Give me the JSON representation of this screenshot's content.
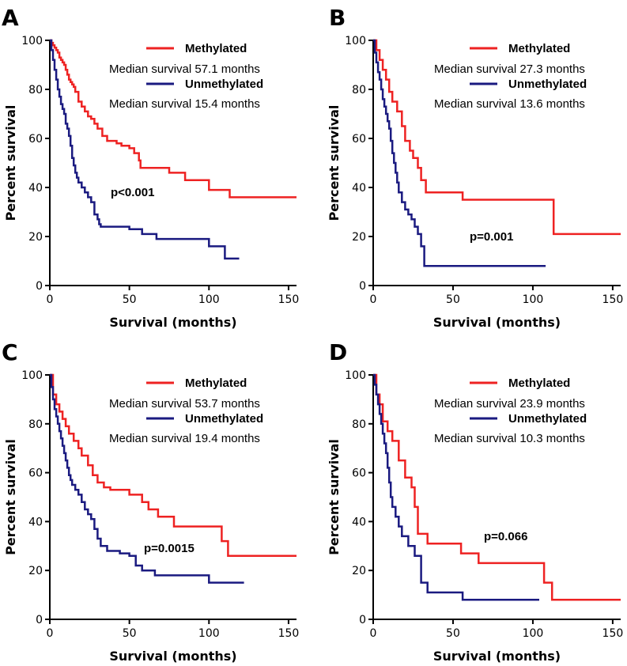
{
  "chart_data": [
    {
      "panel": "A",
      "type": "line",
      "xlabel": "Survival (months)",
      "ylabel": "Percent survival",
      "xlim": [
        0,
        155
      ],
      "ylim": [
        0,
        100
      ],
      "xticks": [
        0,
        50,
        100,
        150
      ],
      "yticks": [
        0,
        20,
        40,
        60,
        80,
        100
      ],
      "pvalue": "p<0.001",
      "series": [
        {
          "name": "Methylated",
          "color": "#ee2222",
          "median_text": "Median survival 57.1 months",
          "x": [
            0,
            1,
            2,
            3,
            4,
            5,
            6,
            7,
            8,
            9,
            10,
            11,
            12,
            13,
            14,
            15,
            16,
            18,
            20,
            22,
            24,
            26,
            28,
            30,
            33,
            36,
            42,
            45,
            50,
            53,
            56,
            57,
            68,
            75,
            85,
            100,
            113,
            155
          ],
          "y": [
            100,
            99,
            98,
            97,
            96,
            95,
            93,
            92,
            91,
            90,
            88,
            86,
            84,
            83,
            82,
            81,
            79,
            75,
            73,
            71,
            69,
            68,
            66,
            64,
            61,
            59,
            58,
            57,
            56,
            54,
            51,
            48,
            48,
            46,
            43,
            39,
            36,
            36
          ]
        },
        {
          "name": "Unmethylated",
          "color": "#1a1a80",
          "median_text": "Median survival 15.4 months",
          "x": [
            0,
            1,
            2,
            3,
            4,
            5,
            6,
            7,
            8,
            9,
            10,
            11,
            12,
            13,
            14,
            15,
            16,
            17,
            18,
            20,
            22,
            24,
            26,
            28,
            30,
            31,
            32,
            42,
            50,
            58,
            67,
            100,
            110,
            119
          ],
          "y": [
            100,
            96,
            92,
            88,
            84,
            80,
            77,
            74,
            72,
            70,
            66,
            64,
            61,
            57,
            52,
            49,
            46,
            44,
            42,
            40,
            38,
            36,
            34,
            29,
            27,
            25,
            24,
            24,
            23,
            21,
            19,
            16,
            11,
            11
          ]
        }
      ]
    },
    {
      "panel": "B",
      "type": "line",
      "xlabel": "Survival (months)",
      "ylabel": "Percent survival",
      "xlim": [
        0,
        155
      ],
      "ylim": [
        0,
        100
      ],
      "xticks": [
        0,
        50,
        100,
        150
      ],
      "yticks": [
        0,
        20,
        40,
        60,
        80,
        100
      ],
      "pvalue": "p=0.001",
      "series": [
        {
          "name": "Methylated",
          "color": "#ee2222",
          "median_text": "Median survival 27.3 months",
          "x": [
            0,
            2,
            4,
            6,
            8,
            10,
            12,
            15,
            18,
            20,
            23,
            25,
            28,
            30,
            33,
            56,
            113,
            155
          ],
          "y": [
            100,
            96,
            92,
            88,
            84,
            79,
            75,
            71,
            65,
            59,
            55,
            52,
            48,
            43,
            38,
            35,
            21,
            21
          ]
        },
        {
          "name": "Unmethylated",
          "color": "#1a1a80",
          "median_text": "Median survival 13.6 months",
          "x": [
            0,
            1,
            2,
            3,
            4,
            5,
            6,
            7,
            8,
            9,
            10,
            11,
            12,
            13,
            14,
            15,
            16,
            18,
            20,
            22,
            24,
            26,
            28,
            30,
            32,
            108
          ],
          "y": [
            100,
            95,
            91,
            87,
            84,
            80,
            76,
            73,
            70,
            67,
            64,
            59,
            54,
            50,
            46,
            42,
            38,
            34,
            31,
            29,
            27,
            24,
            21,
            16,
            8,
            8
          ]
        }
      ]
    },
    {
      "panel": "C",
      "type": "line",
      "xlabel": "Survival (months)",
      "ylabel": "Percent survival",
      "xlim": [
        0,
        155
      ],
      "ylim": [
        0,
        100
      ],
      "xticks": [
        0,
        50,
        100,
        150
      ],
      "yticks": [
        0,
        20,
        40,
        60,
        80,
        100
      ],
      "pvalue": "p=0.0015",
      "series": [
        {
          "name": "Methylated",
          "color": "#ee2222",
          "median_text": "Median survival 53.7 months",
          "x": [
            0,
            2,
            4,
            6,
            8,
            10,
            12,
            15,
            18,
            20,
            24,
            27,
            30,
            34,
            38,
            50,
            58,
            62,
            68,
            78,
            108,
            112,
            155
          ],
          "y": [
            100,
            92,
            88,
            85,
            82,
            79,
            76,
            73,
            70,
            67,
            63,
            59,
            56,
            54,
            53,
            51,
            48,
            45,
            42,
            38,
            32,
            26,
            26
          ]
        },
        {
          "name": "Unmethylated",
          "color": "#1a1a80",
          "median_text": "Median survival 19.4 months",
          "x": [
            0,
            1,
            2,
            3,
            4,
            5,
            6,
            7,
            8,
            9,
            10,
            11,
            12,
            13,
            14,
            16,
            18,
            20,
            22,
            24,
            26,
            28,
            30,
            32,
            36,
            44,
            50,
            54,
            58,
            66,
            100,
            122
          ],
          "y": [
            100,
            95,
            90,
            86,
            83,
            80,
            77,
            74,
            71,
            68,
            65,
            62,
            59,
            57,
            55,
            53,
            51,
            48,
            45,
            43,
            41,
            37,
            33,
            30,
            28,
            27,
            26,
            22,
            20,
            18,
            15,
            15
          ]
        }
      ]
    },
    {
      "panel": "D",
      "type": "line",
      "xlabel": "Survival (months)",
      "ylabel": "Percent survival",
      "xlim": [
        0,
        155
      ],
      "ylim": [
        0,
        100
      ],
      "xticks": [
        0,
        50,
        100,
        150
      ],
      "yticks": [
        0,
        20,
        40,
        60,
        80,
        100
      ],
      "pvalue": "p=0.066",
      "series": [
        {
          "name": "Methylated",
          "color": "#ee2222",
          "median_text": "Median survival 23.9 months",
          "x": [
            0,
            2,
            4,
            6,
            9,
            12,
            16,
            20,
            24,
            26,
            28,
            34,
            55,
            66,
            107,
            112,
            155
          ],
          "y": [
            100,
            92,
            88,
            81,
            77,
            73,
            65,
            58,
            54,
            46,
            35,
            31,
            27,
            23,
            15,
            8,
            8
          ]
        },
        {
          "name": "Unmethylated",
          "color": "#1a1a80",
          "median_text": "Median survival 10.3 months",
          "x": [
            0,
            1,
            2,
            3,
            4,
            5,
            6,
            7,
            8,
            9,
            10,
            11,
            12,
            14,
            16,
            18,
            22,
            26,
            30,
            34,
            56,
            104
          ],
          "y": [
            100,
            96,
            92,
            88,
            84,
            80,
            76,
            72,
            68,
            62,
            56,
            50,
            46,
            42,
            38,
            34,
            30,
            26,
            15,
            11,
            8,
            8
          ]
        }
      ]
    }
  ]
}
